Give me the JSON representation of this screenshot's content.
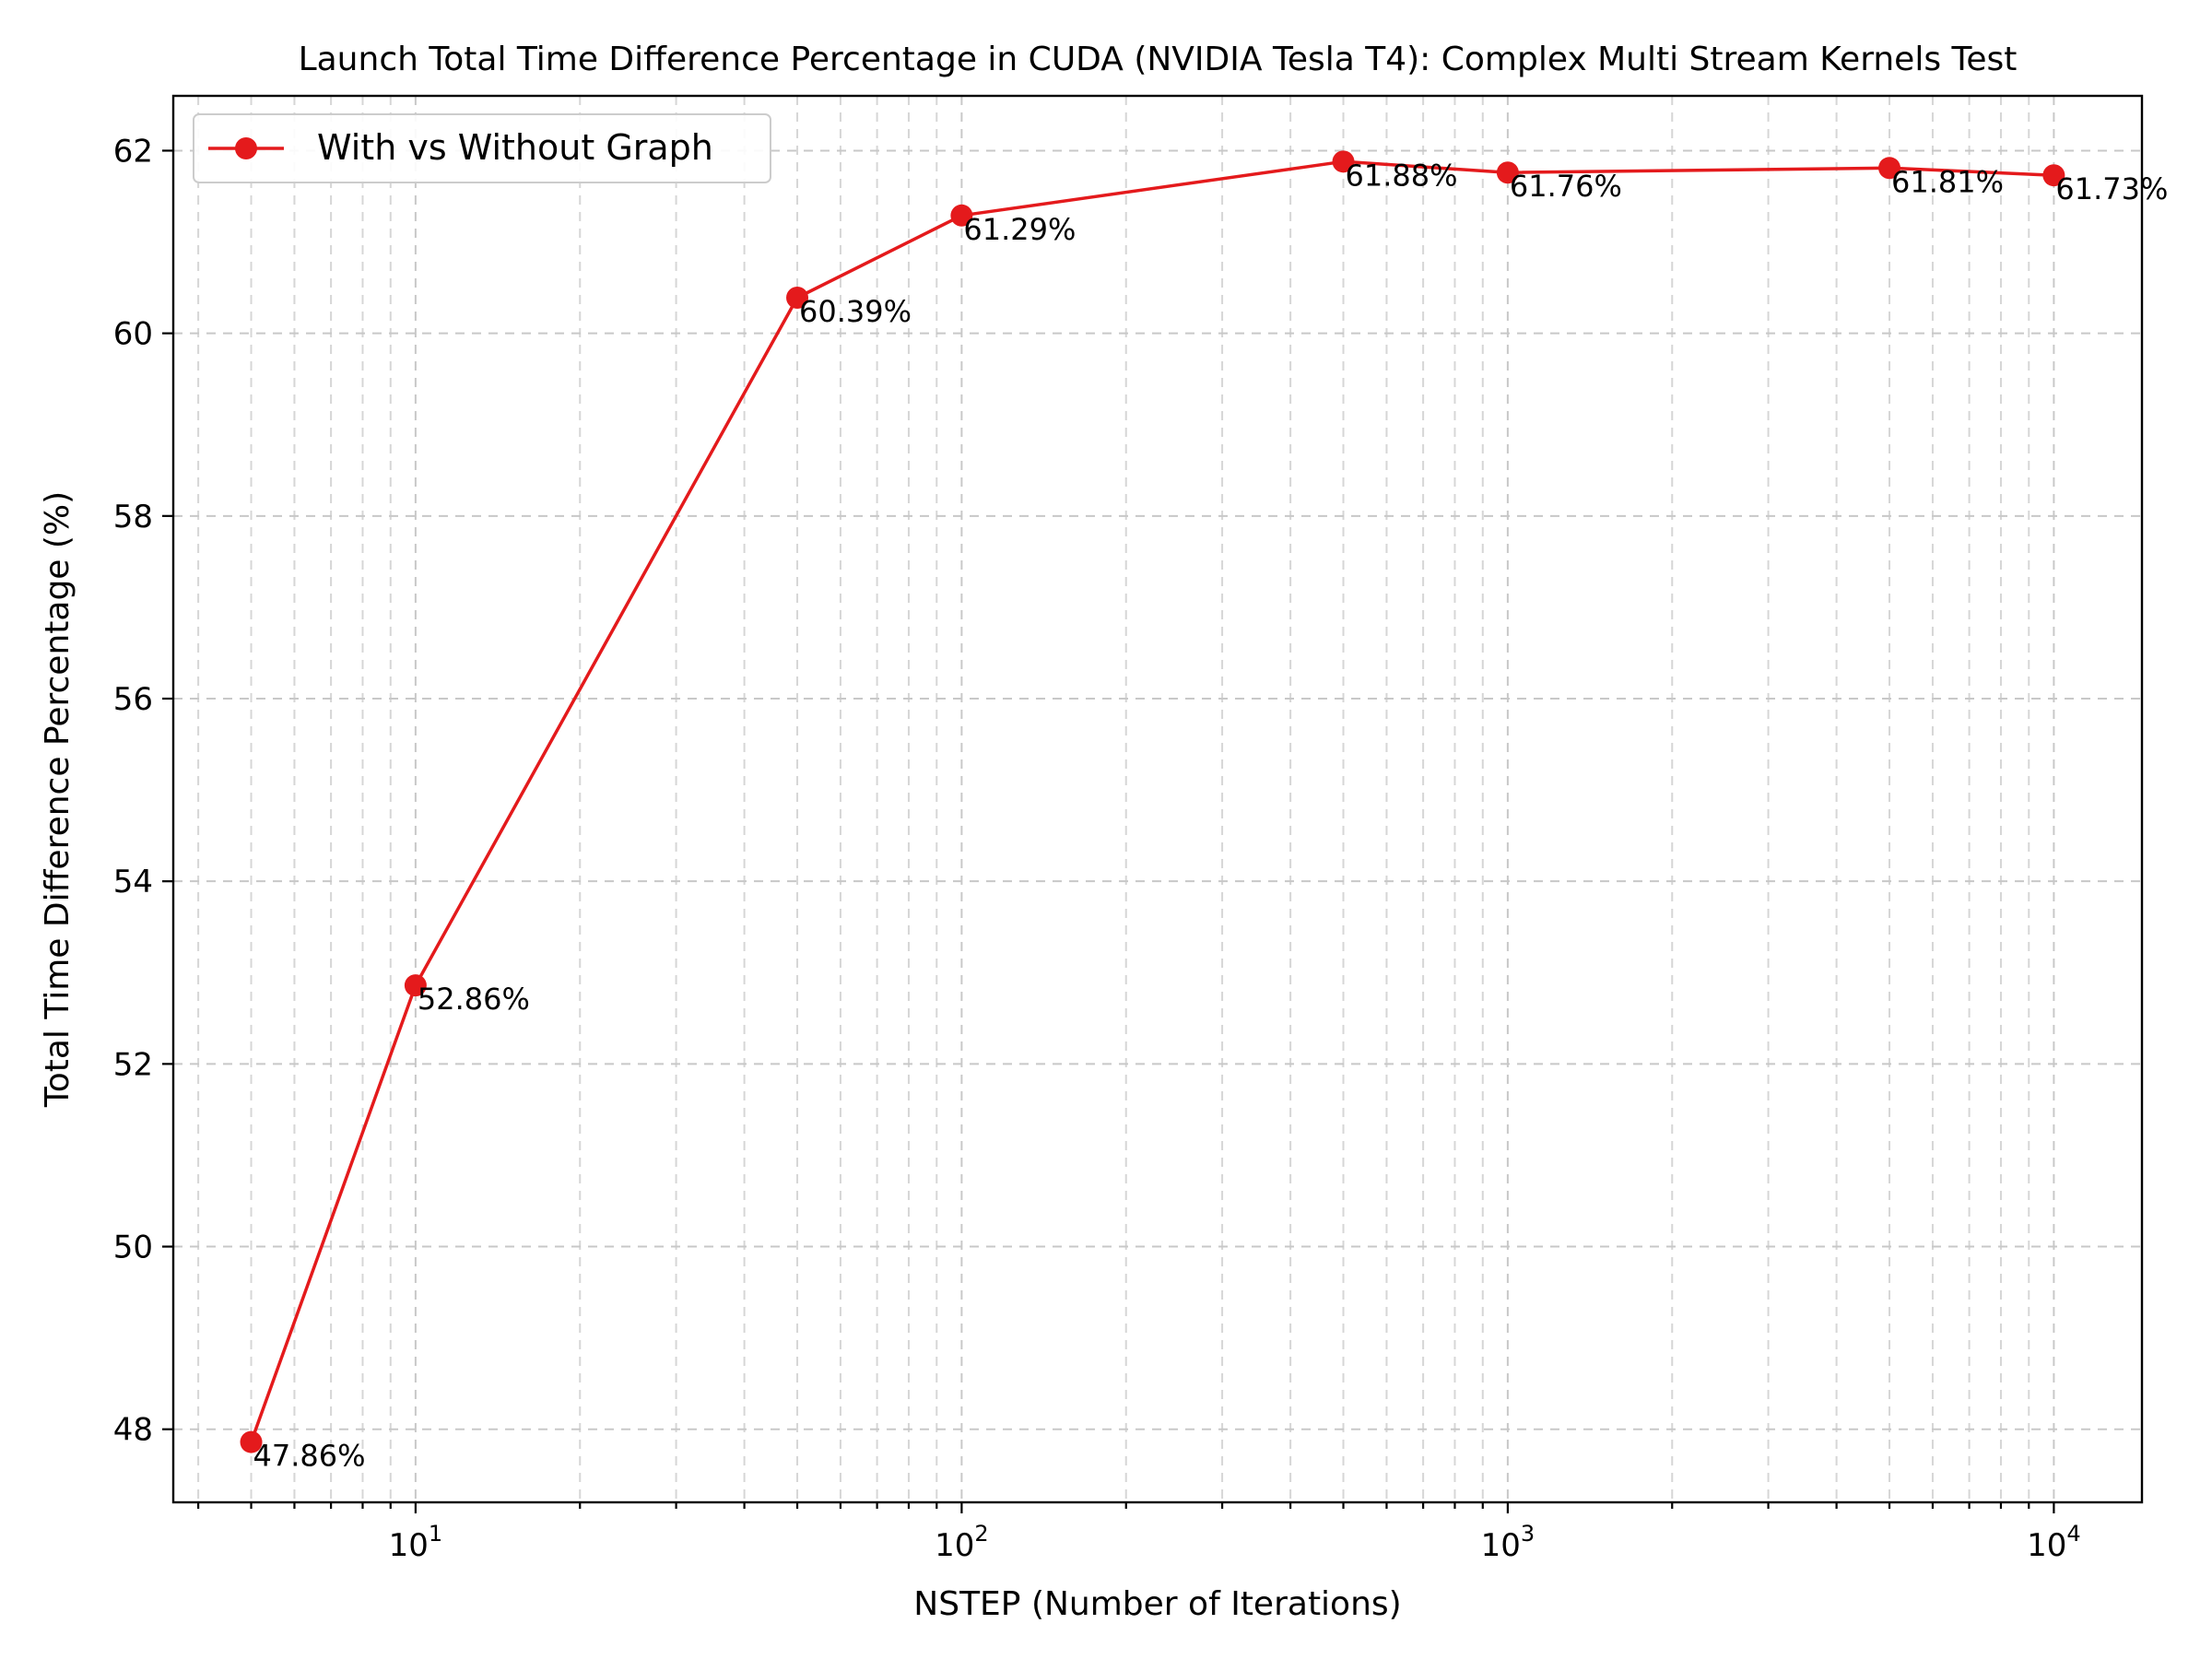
{
  "chart_data": {
    "type": "line",
    "title": "Launch Total Time Difference Percentage in CUDA (NVIDIA Tesla T4): Complex Multi Stream Kernels Test",
    "xlabel": "NSTEP (Number of Iterations)",
    "ylabel": "Total Time Difference Percentage (%)",
    "xscale": "log",
    "xlim": [
      3.6,
      14500
    ],
    "ylim": [
      47.2,
      62.6
    ],
    "x_ticks": [
      10,
      100,
      1000,
      10000
    ],
    "x_tick_labels": [
      {
        "base": "10",
        "exp": "1"
      },
      {
        "base": "10",
        "exp": "2"
      },
      {
        "base": "10",
        "exp": "3"
      },
      {
        "base": "10",
        "exp": "4"
      }
    ],
    "y_ticks": [
      48,
      50,
      52,
      54,
      56,
      58,
      60,
      62
    ],
    "grid": true,
    "legend_position": "upper-left",
    "series": [
      {
        "name": "With vs Without Graph",
        "color": "#e41a1c",
        "marker": "circle",
        "x": [
          5,
          10,
          50,
          100,
          500,
          1000,
          5000,
          10000
        ],
        "y": [
          47.86,
          52.86,
          60.39,
          61.29,
          61.88,
          61.76,
          61.81,
          61.73
        ],
        "labels": [
          "47.86%",
          "52.86%",
          "60.39%",
          "61.29%",
          "61.88%",
          "61.76%",
          "61.81%",
          "61.73%"
        ]
      }
    ]
  }
}
